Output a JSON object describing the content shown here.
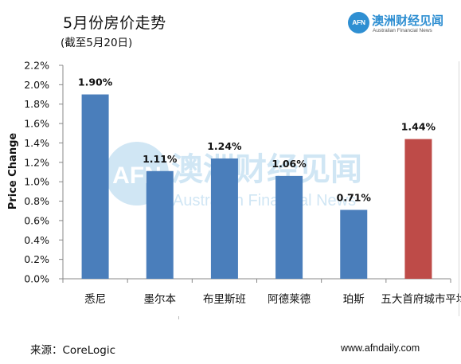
{
  "header": {
    "title": "5月份房价走势",
    "subtitle": "(截至5月20日)"
  },
  "brand": {
    "logo_mark": "AFN",
    "name_cn": "澳洲财经见闻",
    "name_en": "Australian Financial News",
    "watermark_cn": "澳洲财经见闻",
    "watermark_en": "Australian Financial News",
    "color": "#2f8fd2"
  },
  "footer": {
    "source": "来源：CoreLogic",
    "website": "www.afndaily.com"
  },
  "chart_data": {
    "type": "bar",
    "ylabel": "Price Change",
    "ylim": [
      0,
      2.2
    ],
    "yticks": [
      "0.0%",
      "0.2%",
      "0.4%",
      "0.6%",
      "0.8%",
      "1.0%",
      "1.2%",
      "1.4%",
      "1.6%",
      "1.8%",
      "2.0%",
      "2.2%"
    ],
    "grid": false,
    "categories": [
      "悉尼",
      "墨尔本",
      "布里斯班",
      "阿德莱德",
      "珀斯",
      "五大首府城市平均"
    ],
    "values": [
      1.9,
      1.11,
      1.24,
      1.06,
      0.71,
      1.44
    ],
    "data_labels": [
      "1.90%",
      "1.11%",
      "1.24%",
      "1.06%",
      "0.71%",
      "1.44%"
    ],
    "colors": [
      "#4a7ebb",
      "#4a7ebb",
      "#4a7ebb",
      "#4a7ebb",
      "#4a7ebb",
      "#be4b48"
    ]
  }
}
